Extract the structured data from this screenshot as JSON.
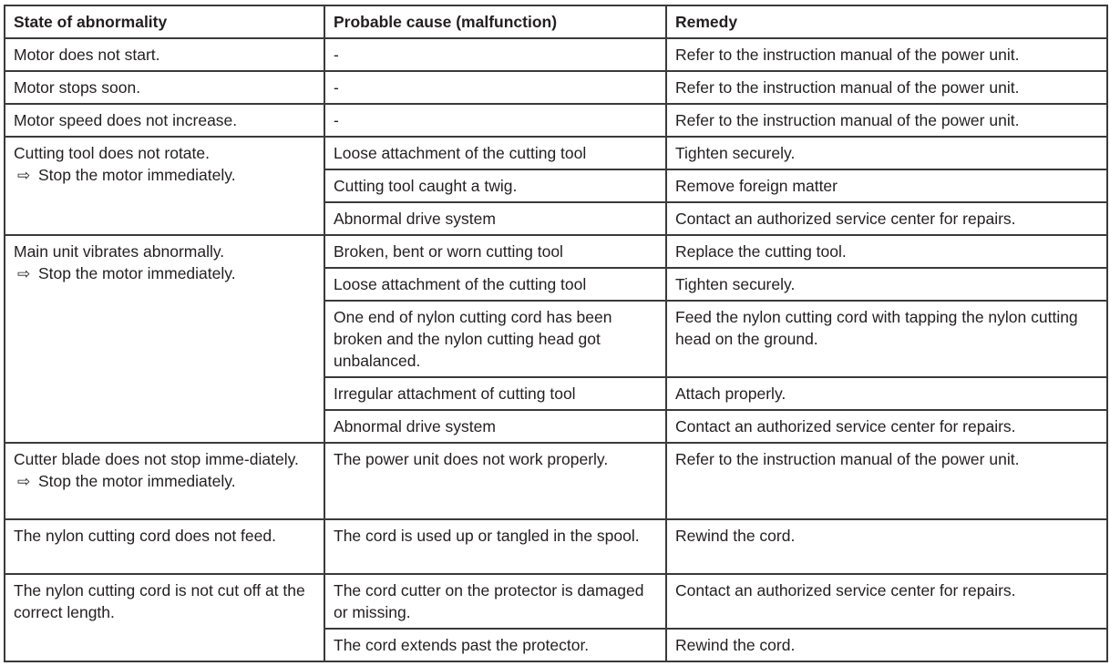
{
  "table": {
    "headers": {
      "state": "State of abnormality",
      "cause": "Probable cause (malfunction)",
      "remedy": "Remedy"
    },
    "note_arrow": "⇨",
    "groups": [
      {
        "state": "Motor does not start.",
        "note": null,
        "rows": [
          {
            "cause": "-",
            "remedy": "Refer to the instruction manual of the power unit."
          }
        ]
      },
      {
        "state": "Motor stops soon.",
        "note": null,
        "rows": [
          {
            "cause": "-",
            "remedy": "Refer to the instruction manual of the power unit."
          }
        ]
      },
      {
        "state": "Motor speed does not increase.",
        "note": null,
        "rows": [
          {
            "cause": "-",
            "remedy": "Refer to the instruction manual of the power unit."
          }
        ]
      },
      {
        "state": "Cutting tool does not rotate.",
        "note": "Stop the motor immediately.",
        "rows": [
          {
            "cause": "Loose attachment of the cutting tool",
            "remedy": "Tighten securely."
          },
          {
            "cause": "Cutting tool caught a twig.",
            "remedy": "Remove foreign matter"
          },
          {
            "cause": "Abnormal drive system",
            "remedy": "Contact an authorized service center for repairs."
          }
        ]
      },
      {
        "state": "Main unit vibrates abnormally.",
        "note": "Stop the motor immediately.",
        "rows": [
          {
            "cause": "Broken, bent or worn cutting tool",
            "remedy": "Replace the cutting tool."
          },
          {
            "cause": "Loose attachment of the cutting tool",
            "remedy": "Tighten securely."
          },
          {
            "cause": "One end of nylon cutting cord has been broken and the nylon cutting head got unbalanced.",
            "remedy": "Feed the nylon cutting cord with tapping the nylon cutting head on the ground."
          },
          {
            "cause": "Irregular attachment of cutting tool",
            "remedy": "Attach properly."
          },
          {
            "cause": "Abnormal drive system",
            "remedy": "Contact an authorized service center for repairs."
          }
        ]
      },
      {
        "state": "Cutter blade does not stop imme-diately.",
        "note": "Stop the motor immediately.",
        "rows": [
          {
            "cause": "The power unit does not work properly.",
            "remedy": "Refer to the instruction manual of the power unit."
          }
        ]
      },
      {
        "state": "The nylon cutting cord does not feed.",
        "note": null,
        "rows": [
          {
            "cause": "The cord is used up or tangled in the spool.",
            "remedy": "Rewind the cord."
          }
        ]
      },
      {
        "state": "The nylon cutting cord is not cut off at the correct length.",
        "note": null,
        "rows": [
          {
            "cause": "The cord cutter on the protector is damaged or missing.",
            "remedy": "Contact an authorized service center for repairs."
          },
          {
            "cause": "The cord extends past the protector.",
            "remedy": "Rewind the cord."
          }
        ]
      }
    ]
  }
}
